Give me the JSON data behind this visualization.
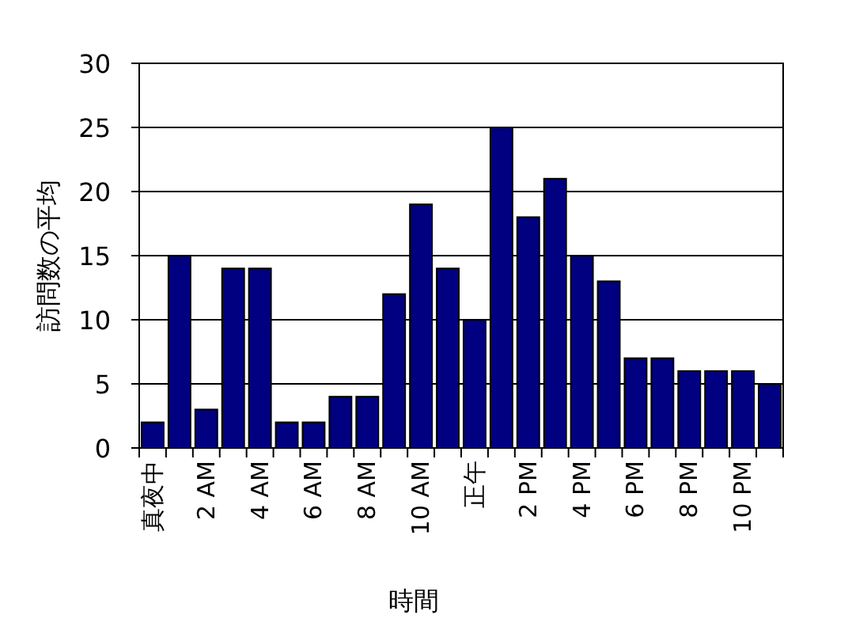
{
  "chart_data": {
    "type": "bar",
    "xlabel": "時間",
    "ylabel": "訪問数の平均",
    "categories": [
      "真夜中",
      null,
      "2 AM",
      null,
      "4 AM",
      null,
      "6 AM",
      null,
      "8 AM",
      null,
      "10 AM",
      null,
      "正午",
      null,
      "2 PM",
      null,
      "4 PM",
      null,
      "6 PM",
      null,
      "8 PM",
      null,
      "10 PM",
      null
    ],
    "values": [
      2,
      15,
      3,
      14,
      14,
      2,
      2,
      4,
      4,
      12,
      19,
      14,
      10,
      25,
      18,
      21,
      15,
      13,
      7,
      7,
      6,
      6,
      6,
      5
    ],
    "color": "#000080",
    "ylim": [
      0,
      30
    ],
    "yticks": [
      0,
      5,
      10,
      15,
      20,
      25,
      30
    ],
    "grid": "y"
  }
}
